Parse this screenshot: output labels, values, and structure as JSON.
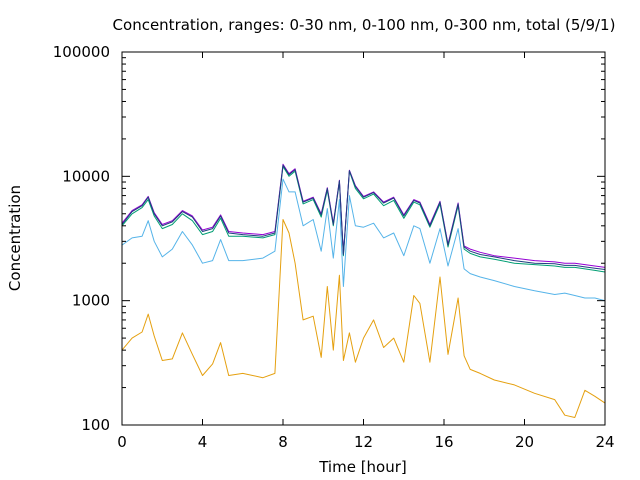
{
  "chart_data": {
    "type": "line",
    "title": "Concentration, ranges: 0-30 nm, 0-100 nm, 0-300 nm, total (5/9/1)",
    "xlabel": "Time [hour]",
    "ylabel": "Concentration",
    "xlim": [
      0,
      24
    ],
    "ylim": [
      100,
      100000
    ],
    "yscale": "log",
    "grid": false,
    "legend": "none",
    "xticks": [
      0,
      4,
      8,
      12,
      16,
      20,
      24
    ],
    "xtick_labels": [
      "0",
      "4",
      "8",
      "12",
      "16",
      "20",
      "24"
    ],
    "yticks": [
      100,
      1000,
      10000,
      100000
    ],
    "ytick_labels": [
      "100",
      "1000",
      "10000",
      "100000"
    ],
    "x": [
      0,
      0.5,
      1.0,
      1.3,
      1.6,
      2.0,
      2.5,
      3.0,
      3.5,
      4.0,
      4.5,
      4.9,
      5.3,
      6.0,
      7.0,
      7.6,
      8.0,
      8.3,
      8.6,
      9.0,
      9.5,
      9.9,
      10.2,
      10.5,
      10.8,
      11.0,
      11.3,
      11.6,
      12.0,
      12.5,
      13.0,
      13.5,
      14.0,
      14.5,
      14.8,
      15.3,
      15.8,
      16.2,
      16.7,
      17.0,
      17.3,
      17.8,
      18.5,
      19.5,
      20.5,
      21.5,
      22.0,
      22.5,
      23.0,
      23.5,
      24.0
    ],
    "series": [
      {
        "color": "#e5a00f",
        "values": [
          400,
          500,
          560,
          780,
          520,
          330,
          340,
          550,
          370,
          250,
          310,
          460,
          250,
          260,
          240,
          260,
          4500,
          3500,
          2000,
          700,
          750,
          350,
          1300,
          400,
          1600,
          330,
          550,
          320,
          500,
          700,
          420,
          500,
          320,
          1100,
          950,
          320,
          1550,
          370,
          1050,
          360,
          280,
          260,
          230,
          210,
          180,
          160,
          120,
          115,
          190,
          170,
          150
        ]
      },
      {
        "color": "#56b4e9",
        "values": [
          2800,
          3200,
          3300,
          4400,
          3000,
          2250,
          2600,
          3600,
          2800,
          2000,
          2100,
          3100,
          2100,
          2100,
          2200,
          2500,
          9500,
          7500,
          7500,
          4000,
          4500,
          2500,
          5500,
          2200,
          6500,
          1300,
          7000,
          4000,
          3900,
          4200,
          3200,
          3500,
          2300,
          4000,
          3800,
          2000,
          3800,
          1900,
          3800,
          1800,
          1650,
          1550,
          1450,
          1300,
          1200,
          1120,
          1150,
          1100,
          1050,
          1050,
          1000
        ]
      },
      {
        "color": "#009e73",
        "values": [
          4000,
          5000,
          5600,
          6500,
          4800,
          3800,
          4100,
          5000,
          4400,
          3400,
          3600,
          4600,
          3300,
          3300,
          3200,
          3400,
          12000,
          10000,
          11000,
          6000,
          6500,
          4700,
          7700,
          4000,
          9000,
          2300,
          11000,
          8000,
          6600,
          7200,
          5800,
          6400,
          4600,
          6200,
          5900,
          3900,
          6000,
          2700,
          5800,
          2600,
          2400,
          2250,
          2150,
          2000,
          1950,
          1900,
          1850,
          1850,
          1800,
          1750,
          1700
        ]
      },
      {
        "color": "#9400d3",
        "values": [
          4200,
          5300,
          5900,
          6900,
          5100,
          4100,
          4400,
          5300,
          4800,
          3700,
          3900,
          4900,
          3600,
          3500,
          3400,
          3600,
          12500,
          10500,
          11500,
          6300,
          6800,
          5000,
          8100,
          4200,
          9300,
          2400,
          11200,
          8400,
          6900,
          7500,
          6200,
          6800,
          4900,
          6500,
          6200,
          4100,
          6300,
          2850,
          6100,
          2750,
          2600,
          2450,
          2300,
          2200,
          2100,
          2050,
          2000,
          2000,
          1950,
          1900,
          1850
        ]
      },
      {
        "color": "#1f3f7f",
        "values": [
          4100,
          5200,
          5800,
          6800,
          5000,
          4000,
          4300,
          5200,
          4700,
          3600,
          3800,
          4800,
          3500,
          3400,
          3300,
          3500,
          12300,
          10300,
          11300,
          6200,
          6700,
          4900,
          8000,
          4100,
          9200,
          2350,
          11100,
          8300,
          6800,
          7400,
          6100,
          6700,
          4800,
          6400,
          6100,
          4000,
          6200,
          2800,
          6000,
          2700,
          2500,
          2350,
          2250,
          2100,
          2000,
          1980,
          1920,
          1920,
          1870,
          1820,
          1780
        ]
      }
    ]
  }
}
